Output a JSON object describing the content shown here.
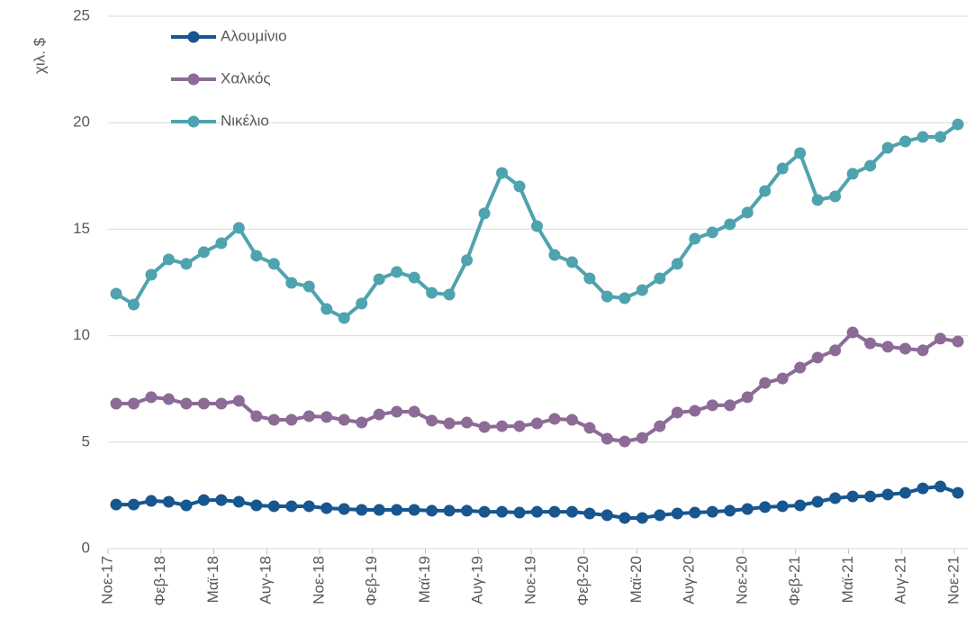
{
  "chart_data": {
    "type": "line",
    "y_label": "χιλ. $",
    "categories": [
      "Νοε-17",
      null,
      null,
      "Φεβ-18",
      null,
      null,
      "Μαϊ-18",
      null,
      null,
      "Αυγ-18",
      null,
      null,
      "Νοε-18",
      null,
      null,
      "Φεβ-19",
      null,
      null,
      "Μαϊ-19",
      null,
      null,
      "Αυγ-19",
      null,
      null,
      "Νοε-19",
      null,
      null,
      "Φεβ-20",
      null,
      null,
      "Μαϊ-20",
      null,
      null,
      "Αυγ-20",
      null,
      null,
      "Νοε-20",
      null,
      null,
      "Φεβ-21",
      null,
      null,
      "Μαϊ-21",
      null,
      null,
      "Αυγ-21",
      null,
      null,
      "Νοε-21"
    ],
    "series": [
      {
        "name": "Αλουμίνιο",
        "color": "#17568f",
        "values": [
          2.07,
          2.07,
          2.24,
          2.2,
          2.03,
          2.28,
          2.28,
          2.2,
          2.03,
          1.99,
          1.99,
          1.99,
          1.9,
          1.86,
          1.82,
          1.82,
          1.82,
          1.82,
          1.78,
          1.78,
          1.78,
          1.73,
          1.73,
          1.69,
          1.73,
          1.73,
          1.73,
          1.65,
          1.57,
          1.44,
          1.44,
          1.57,
          1.65,
          1.69,
          1.73,
          1.78,
          1.86,
          1.95,
          1.99,
          2.03,
          2.2,
          2.37,
          2.45,
          2.45,
          2.54,
          2.62,
          2.83,
          2.92,
          2.62
        ]
      },
      {
        "name": "Χαλκός",
        "color": "#8c6b96",
        "values": [
          6.81,
          6.81,
          7.11,
          7.02,
          6.81,
          6.81,
          6.81,
          6.94,
          6.22,
          6.05,
          6.05,
          6.22,
          6.18,
          6.05,
          5.92,
          6.3,
          6.43,
          6.43,
          6.01,
          5.88,
          5.92,
          5.71,
          5.75,
          5.75,
          5.88,
          6.09,
          6.05,
          5.67,
          5.16,
          5.03,
          5.2,
          5.75,
          6.39,
          6.47,
          6.73,
          6.73,
          7.11,
          7.78,
          7.99,
          8.5,
          8.97,
          9.31,
          10.15,
          9.64,
          9.48,
          9.39,
          9.31,
          9.86,
          9.73
        ]
      },
      {
        "name": "Νικέλιο",
        "color": "#4fa3ae",
        "values": [
          11.97,
          11.46,
          12.86,
          13.58,
          13.37,
          13.92,
          14.34,
          15.06,
          13.75,
          13.37,
          12.48,
          12.31,
          11.25,
          10.83,
          11.51,
          12.65,
          12.99,
          12.73,
          12.01,
          11.93,
          13.54,
          15.74,
          17.64,
          17.01,
          15.14,
          13.79,
          13.45,
          12.69,
          11.84,
          11.76,
          12.14,
          12.69,
          13.37,
          14.55,
          14.85,
          15.23,
          15.78,
          16.79,
          17.85,
          18.57,
          16.37,
          16.54,
          17.6,
          17.98,
          18.82,
          19.12,
          19.33,
          19.33,
          19.92
        ]
      }
    ],
    "ylim": [
      0,
      25
    ],
    "yticks": [
      0,
      5,
      10,
      15,
      20,
      25
    ],
    "grid": true,
    "legend": "upper left"
  }
}
